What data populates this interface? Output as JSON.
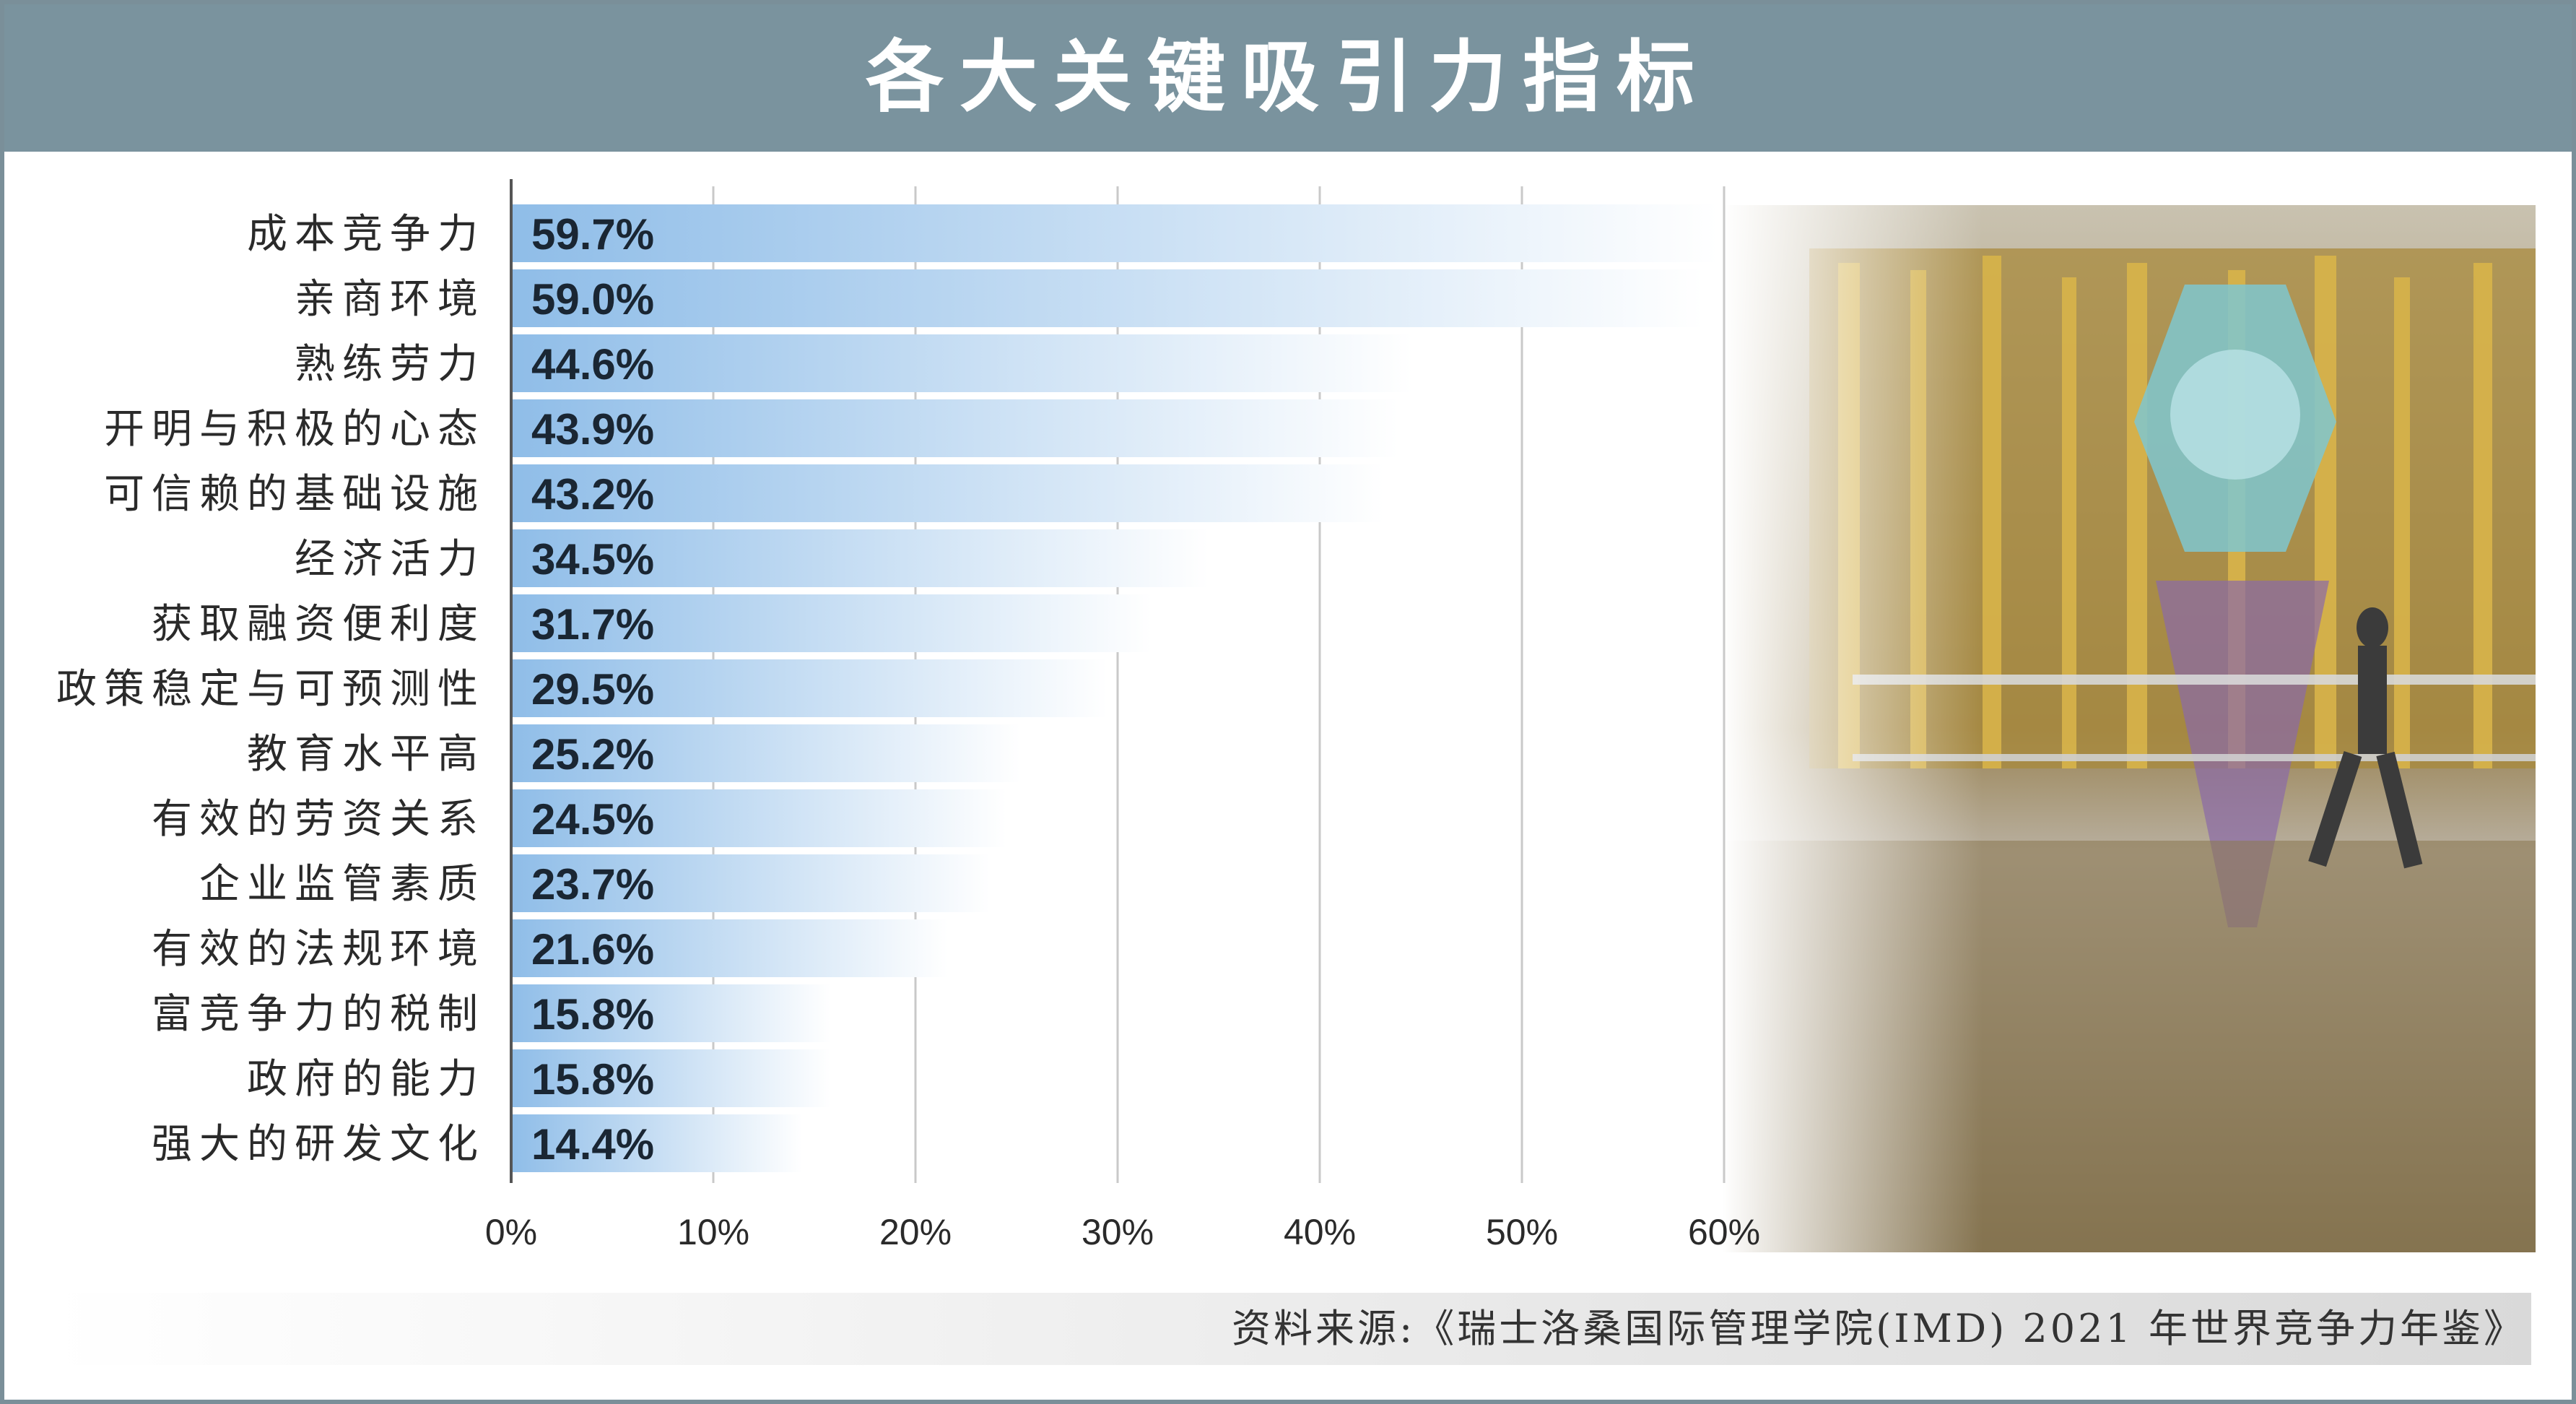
{
  "title": "各大关键吸引力指标",
  "source": "资料来源:《瑞士洛桑国际管理学院(IMD) 2021 年世界竞争力年鉴》",
  "colors": {
    "title_bg": "#7a939e",
    "frame": "#7a8f99",
    "bar_strong": "#8fbde8",
    "bar_light": "#ffffff",
    "value_text": "#1a2633",
    "label_text": "#2a2a2a",
    "axis": "#555555",
    "grid": "#c9c9c9"
  },
  "chart_data": {
    "type": "bar",
    "orientation": "horizontal",
    "categories": [
      "成本竞争力",
      "亲商环境",
      "熟练劳力",
      "开明与积极的心态",
      "可信赖的基础设施",
      "经济活力",
      "获取融资便利度",
      "政策稳定与可预测性",
      "教育水平高",
      "有效的劳资关系",
      "企业监管素质",
      "有效的法规环境",
      "富竞争力的税制",
      "政府的能力",
      "强大的研发文化"
    ],
    "values": [
      59.7,
      59.0,
      44.6,
      43.9,
      43.2,
      34.5,
      31.7,
      29.5,
      25.2,
      24.5,
      23.7,
      21.6,
      15.8,
      15.8,
      14.4
    ],
    "value_labels": [
      "59.7%",
      "59.0%",
      "44.6%",
      "43.9%",
      "43.2%",
      "34.5%",
      "31.7%",
      "29.5%",
      "25.2%",
      "24.5%",
      "23.7%",
      "21.6%",
      "15.8%",
      "15.8%",
      "14.4%"
    ],
    "xlim": [
      0,
      60
    ],
    "xticks": [
      0,
      10,
      20,
      30,
      40,
      50,
      60
    ],
    "xtick_labels": [
      "0%",
      "10%",
      "20%",
      "30%",
      "40%",
      "50%",
      "60%"
    ],
    "grid": true,
    "legend": "none"
  }
}
